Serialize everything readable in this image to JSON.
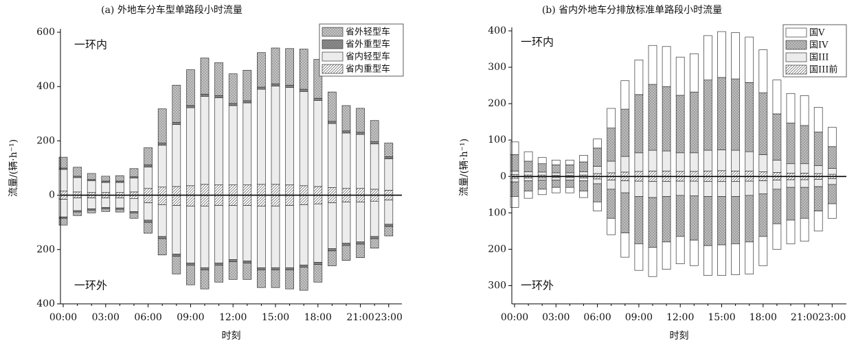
{
  "chart_data": [
    {
      "type": "bar",
      "stacked": true,
      "title": "(a) 外地车分车型单路段小时流量",
      "xlabel": "时刻",
      "ylabel": "流量/(辆·h⁻¹)",
      "annotations": [
        "一环内",
        "一环外"
      ],
      "legend": "upper right",
      "categories": [
        "00:00",
        null,
        null,
        "03:00",
        null,
        null,
        "06:00",
        null,
        null,
        "09:00",
        null,
        null,
        "12:00",
        null,
        null,
        "15:00",
        null,
        null,
        "18:00",
        null,
        null,
        "21:00",
        null,
        "23:00"
      ],
      "ylim": [
        -400,
        600
      ],
      "yticks": [
        600,
        400,
        200,
        0,
        {
          "value": -200,
          "label": "200"
        },
        {
          "value": -400,
          "label": "400"
        }
      ],
      "series": [
        {
          "name": "省外轻型车",
          "color": "#c4c4c4",
          "pattern": "dots",
          "values": [
            40,
            33,
            22,
            18,
            20,
            30,
            63,
            126,
            137,
            132,
            133,
            121,
            109,
            112,
            127,
            132,
            135,
            148,
            143,
            108,
            93,
            88,
            78,
            50
          ],
          "outer_values": [
            -25,
            -13,
            -10,
            -10,
            -10,
            -20,
            -40,
            -60,
            -65,
            -72,
            -70,
            -62,
            -65,
            -60,
            -65,
            -65,
            -70,
            -85,
            -65,
            -55,
            -55,
            -50,
            -35,
            -35
          ]
        },
        {
          "name": "省外重型车",
          "color": "#8c8c8c",
          "pattern": "dots",
          "values": [
            5,
            5,
            5,
            5,
            5,
            5,
            8,
            8,
            8,
            8,
            8,
            8,
            8,
            8,
            8,
            8,
            8,
            8,
            8,
            8,
            8,
            8,
            8,
            8
          ],
          "outer_values": [
            -5,
            -5,
            -5,
            -5,
            -5,
            -5,
            -8,
            -8,
            -8,
            -8,
            -8,
            -8,
            -8,
            -8,
            -8,
            -8,
            -8,
            -8,
            -8,
            -8,
            -8,
            -8,
            -8,
            -8
          ]
        },
        {
          "name": "省内轻型车",
          "color": "#ececec",
          "pattern": "none",
          "values": [
            80,
            53,
            43,
            37,
            37,
            51,
            79,
            154,
            228,
            287,
            324,
            321,
            292,
            302,
            350,
            362,
            359,
            347,
            317,
            236,
            204,
            199,
            167,
            116
          ],
          "outer_values": [
            -65,
            -47,
            -40,
            -35,
            -37,
            -48,
            -64,
            -117,
            -179,
            -210,
            -227,
            -212,
            -199,
            -204,
            -227,
            -227,
            -229,
            -222,
            -215,
            -169,
            -152,
            -147,
            -130,
            -89
          ]
        },
        {
          "name": "省内重型车",
          "color": "#ffffff",
          "pattern": "hatch",
          "values": [
            15,
            12,
            10,
            10,
            10,
            12,
            25,
            30,
            32,
            35,
            40,
            38,
            38,
            38,
            40,
            40,
            38,
            35,
            32,
            28,
            25,
            25,
            22,
            18
          ],
          "outer_values": [
            -15,
            -10,
            -10,
            -10,
            -10,
            -12,
            -28,
            -35,
            -38,
            -40,
            -40,
            -38,
            -38,
            -38,
            -40,
            -40,
            -38,
            -35,
            -32,
            -28,
            -25,
            -25,
            -22,
            -18
          ]
        }
      ]
    },
    {
      "type": "bar",
      "stacked": true,
      "title": "(b) 省内外地车分排放标准单路段小时流量",
      "xlabel": "时刻",
      "ylabel": "流量/(辆·h⁻¹)",
      "annotations": [
        "一环内",
        "一环外"
      ],
      "legend": "upper right",
      "categories": [
        "00:00",
        null,
        null,
        "03:00",
        null,
        null,
        "06:00",
        null,
        null,
        "09:00",
        null,
        null,
        "12:00",
        null,
        null,
        "15:00",
        null,
        null,
        "18:00",
        null,
        null,
        "21:00",
        null,
        "23:00"
      ],
      "ylim": [
        -350,
        400
      ],
      "yticks": [
        400,
        300,
        200,
        100,
        0,
        {
          "value": -100,
          "label": "100"
        },
        {
          "value": -200,
          "label": "200"
        },
        {
          "value": -300,
          "label": "300"
        }
      ],
      "series": [
        {
          "name": "国V",
          "color": "#ffffff",
          "pattern": "none",
          "values": [
            35,
            26,
            17,
            13,
            13,
            18,
            25,
            54,
            78,
            95,
            107,
            110,
            105,
            105,
            122,
            126,
            127,
            125,
            118,
            93,
            81,
            82,
            68,
            53
          ],
          "outer_values": [
            -30,
            -20,
            -15,
            -15,
            -15,
            -18,
            -25,
            -45,
            -67,
            -73,
            -80,
            -75,
            -75,
            -70,
            -82,
            -84,
            -85,
            -88,
            -80,
            -70,
            -65,
            -63,
            -55,
            -40
          ]
        },
        {
          "name": "国IV",
          "color": "#bdbdbd",
          "pattern": "dots",
          "values": [
            45,
            29,
            23,
            22,
            22,
            27,
            50,
            91,
            130,
            160,
            181,
            177,
            158,
            167,
            193,
            199,
            196,
            190,
            170,
            127,
            112,
            105,
            92,
            60
          ],
          "outer_values": [
            -40,
            -28,
            -25,
            -20,
            -20,
            -28,
            -50,
            -80,
            -110,
            -130,
            -137,
            -125,
            -113,
            -122,
            -135,
            -133,
            -130,
            -128,
            -117,
            -95,
            -90,
            -85,
            -67,
            -53
          ]
        },
        {
          "name": "国III",
          "color": "#ececec",
          "pattern": "none",
          "values": [
            10,
            9,
            8,
            7,
            7,
            9,
            20,
            32,
            43,
            51,
            57,
            55,
            51,
            51,
            57,
            57,
            57,
            53,
            47,
            34,
            26,
            26,
            22,
            16
          ],
          "outer_values": [
            -10,
            -8,
            -6,
            -7,
            -7,
            -8,
            -13,
            -25,
            -33,
            -42,
            -44,
            -41,
            -39,
            -40,
            -41,
            -41,
            -41,
            -39,
            -36,
            -25,
            -21,
            -21,
            -20,
            -16
          ]
        },
        {
          "name": "国III前",
          "color": "#ffffff",
          "pattern": "hatch",
          "values": [
            5,
            4,
            4,
            3,
            3,
            4,
            8,
            10,
            12,
            14,
            15,
            15,
            14,
            14,
            15,
            16,
            15,
            15,
            13,
            11,
            9,
            9,
            8,
            6
          ],
          "outer_values": [
            -5,
            -4,
            -4,
            -3,
            -3,
            -4,
            -7,
            -10,
            -12,
            -13,
            -14,
            -14,
            -13,
            -13,
            -14,
            -14,
            -14,
            -13,
            -12,
            -10,
            -9,
            -9,
            -8,
            -6
          ]
        }
      ]
    }
  ]
}
